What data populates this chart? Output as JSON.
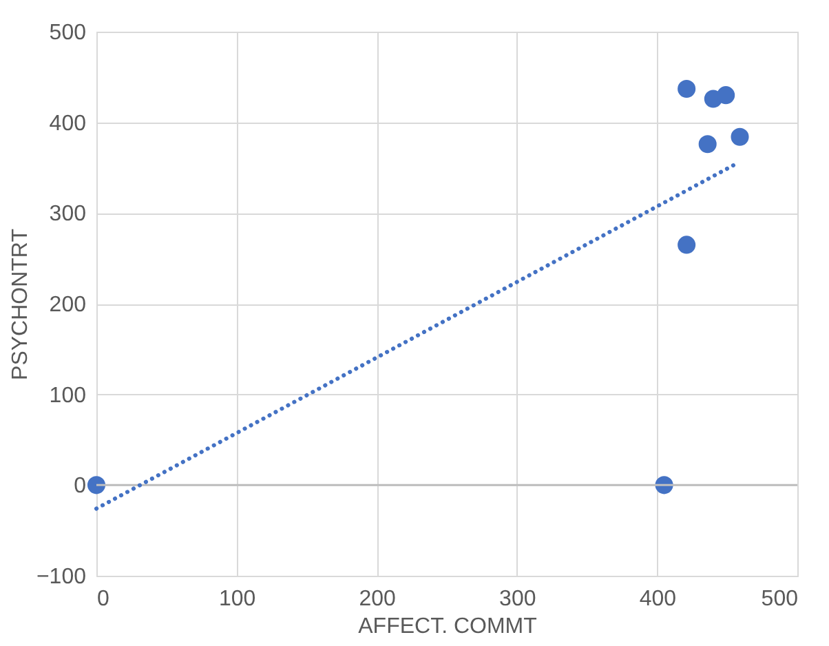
{
  "chart_data": {
    "type": "scatter",
    "xlabel": "AFFECT. COMMT",
    "ylabel": "PSYCHONTRT",
    "xlim": [
      0,
      500
    ],
    "xticks": [
      0,
      100,
      200,
      300,
      400,
      500
    ],
    "ylim": [
      -100,
      500
    ],
    "yticks": [
      -100,
      0,
      100,
      200,
      300,
      400,
      500
    ],
    "grid": true,
    "series": [
      {
        "color": "#4472c4",
        "marker": "circle",
        "x": [
          0,
          405,
          421,
          440,
          449,
          436,
          459,
          421
        ],
        "values": [
          0,
          0,
          437,
          426,
          430,
          376,
          384,
          265
        ]
      },
      {
        "type": "line",
        "color": "#4472c4",
        "line_style": "dotted",
        "x": [
          0,
          456
        ],
        "values": [
          -26,
          354
        ]
      }
    ]
  }
}
